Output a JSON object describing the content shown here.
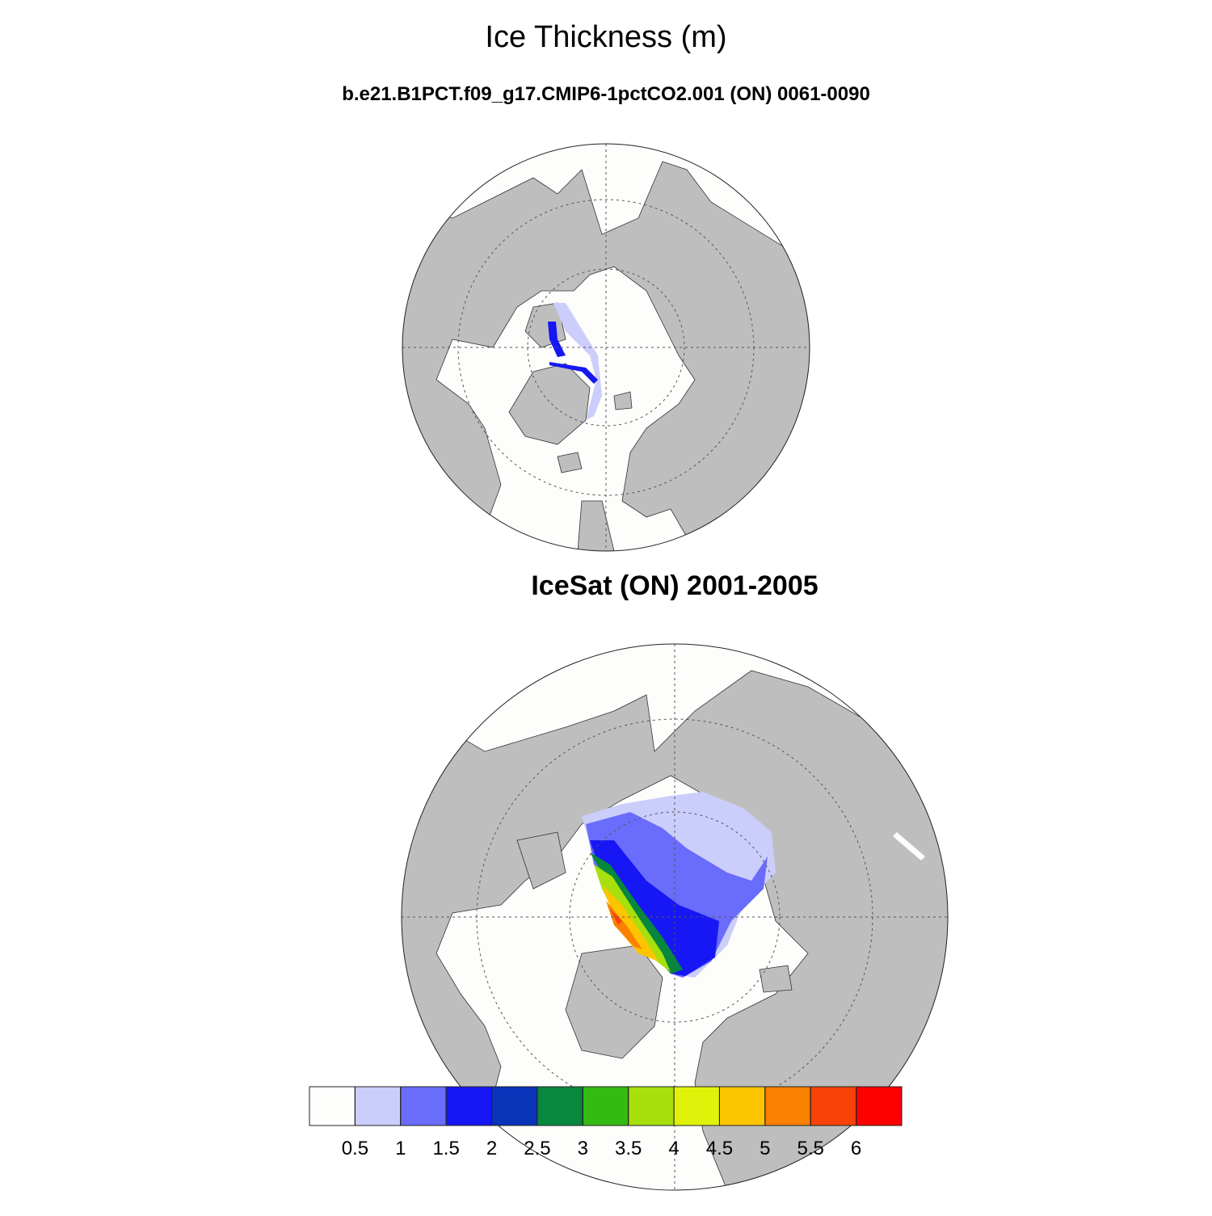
{
  "title": "Ice Thickness (m)",
  "panels": [
    {
      "subtitle": "b.e21.B1PCT.f09_g17.CMIP6-1pctCO2.001 (ON) 0061-0090"
    },
    {
      "subtitle": "IceSat (ON) 2001-2005"
    }
  ],
  "colorbar": {
    "levels": [
      0.5,
      1,
      1.5,
      2,
      2.5,
      3,
      3.5,
      4,
      4.5,
      5,
      5.5,
      6
    ],
    "colors": [
      "#fdfdfb",
      "#cbcdfb",
      "#6a6cfb",
      "#1717f5",
      "#0933b8",
      "#08873f",
      "#33bb13",
      "#a7e00c",
      "#e1f20a",
      "#fdc400",
      "#fb8000",
      "#f84207",
      "#fc0000"
    ]
  }
}
